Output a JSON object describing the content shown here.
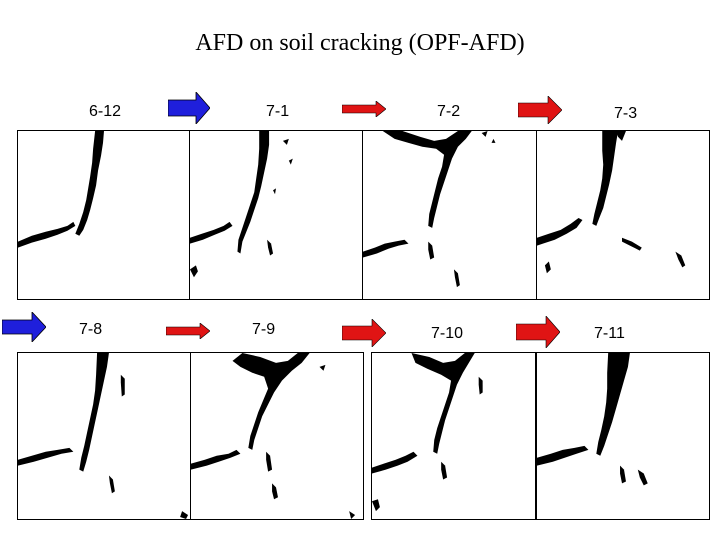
{
  "title": "AFD on soil cracking (OPF-AFD)",
  "row1": {
    "labels": [
      "6-12",
      "7-1",
      "7-2",
      "7-3"
    ],
    "arrow_colors": [
      "#1f1fdc",
      "#e01414",
      "#e01414"
    ]
  },
  "row2": {
    "labels": [
      "7-8",
      "7-9",
      "7-10",
      "7-11"
    ],
    "arrow_colors": [
      "#1f1fdc",
      "#e01414",
      "#e01414",
      "#e01414"
    ]
  },
  "panel_color": "#000000"
}
